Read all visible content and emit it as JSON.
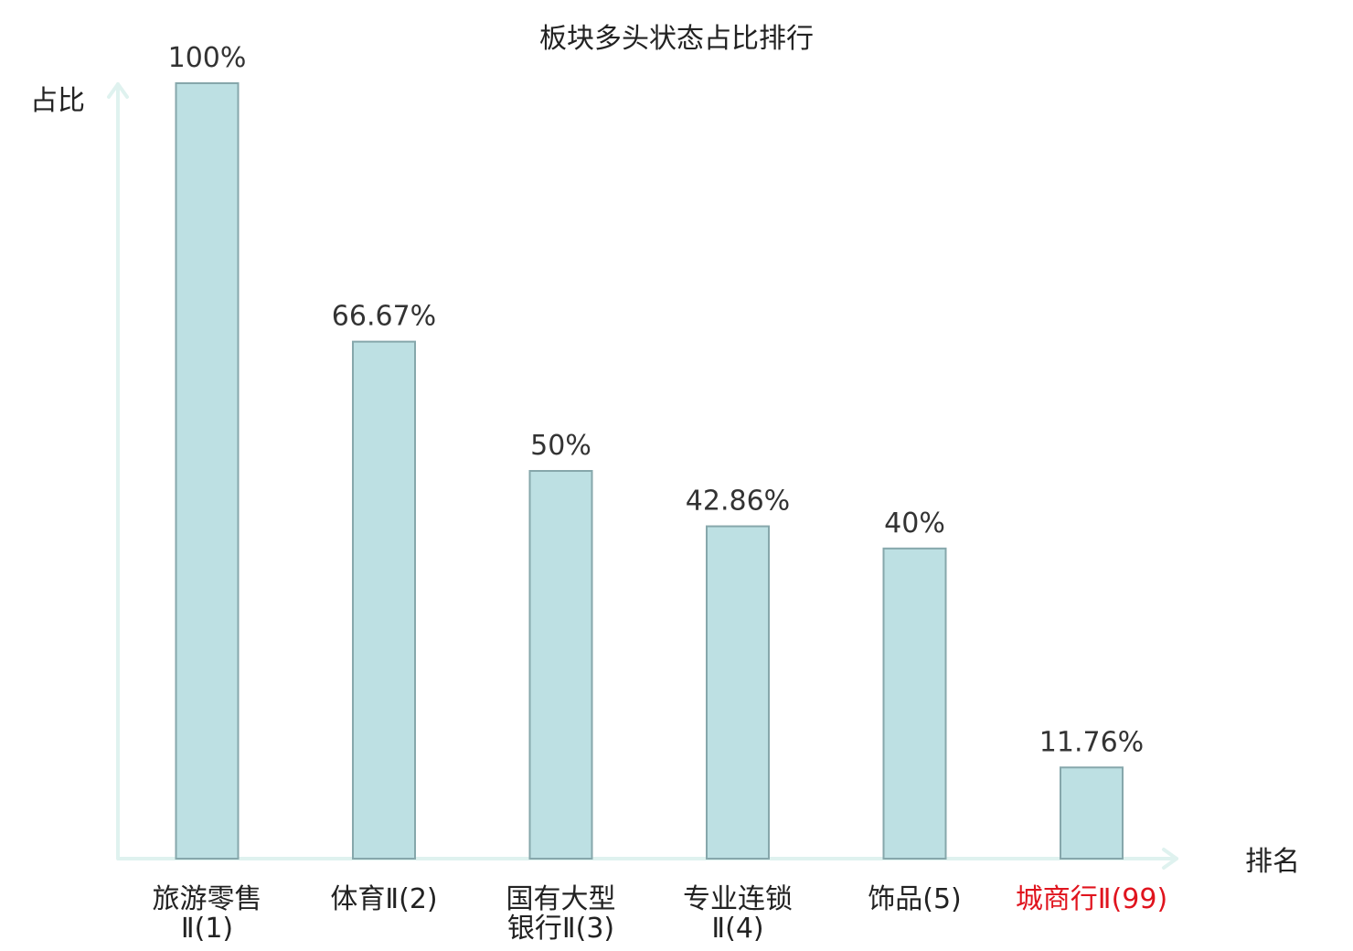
{
  "chart_data": {
    "type": "bar",
    "title": "板块多头状态占比排行",
    "ylabel": "占比",
    "xlabel": "排名",
    "categories": [
      [
        "旅游零售",
        "Ⅱ(1)"
      ],
      [
        "体育Ⅱ(2)"
      ],
      [
        "国有大型",
        "银行Ⅱ(3)"
      ],
      [
        "专业连锁",
        "Ⅱ(4)"
      ],
      [
        "饰品(5)"
      ],
      [
        "城商行Ⅱ(99)"
      ]
    ],
    "values": [
      100,
      66.67,
      50,
      42.86,
      40,
      11.76
    ],
    "value_labels": [
      "100%",
      "66.67%",
      "50%",
      "42.86%",
      "40%",
      "11.76%"
    ],
    "ylim": [
      0,
      100
    ],
    "grid": false,
    "colors": {
      "bar_fill": "#bde0e3",
      "bar_stroke": "#86a7ab",
      "axis": "#dff2ef",
      "highlight_label": "#e0141e"
    },
    "highlight_index": 5
  }
}
